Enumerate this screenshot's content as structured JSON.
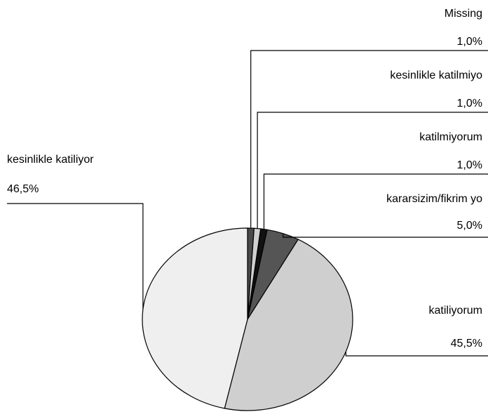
{
  "chart_data": {
    "type": "pie",
    "categories": [
      "Missing",
      "kesinlikle katilmiyo",
      "katilmiyorum",
      "kararsizim/fikrim yo",
      "katiliyorum",
      "kesinlikle katiliyor"
    ],
    "values": [
      1.0,
      1.0,
      1.0,
      5.0,
      45.5,
      46.5
    ],
    "value_labels": [
      "1,0%",
      "1,0%",
      "1,0%",
      "5,0%",
      "45,5%",
      "46,5%"
    ],
    "colors": [
      "#4a4a4a",
      "#d0d0d0",
      "#111111",
      "#555555",
      "#cfcfcf",
      "#efefef"
    ]
  }
}
